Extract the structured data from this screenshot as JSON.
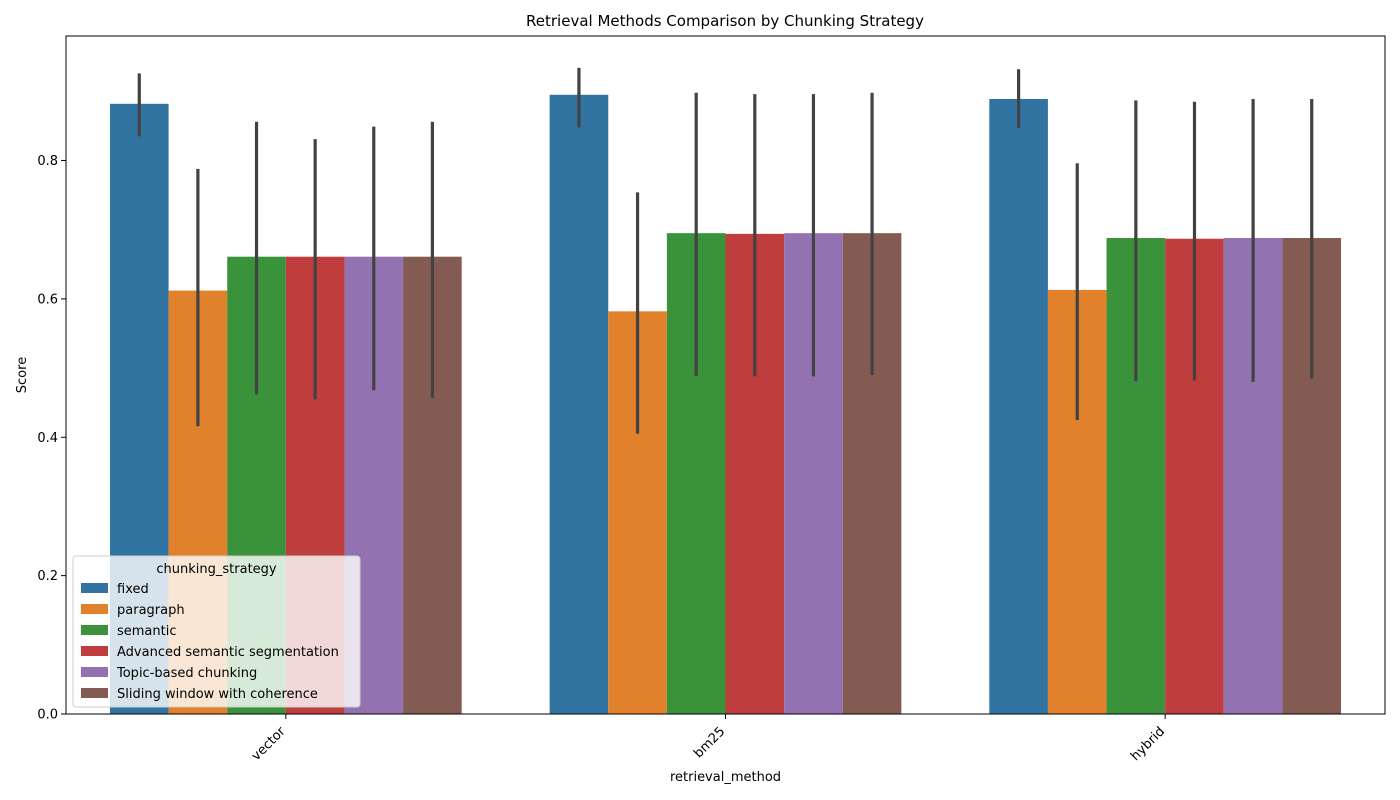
{
  "chart_data": {
    "type": "bar",
    "title": "Retrieval Methods Comparison by Chunking Strategy",
    "xlabel": "retrieval_method",
    "ylabel": "Score",
    "ylim": [
      0,
      0.98
    ],
    "yticks": [
      0.0,
      0.2,
      0.4,
      0.6,
      0.8
    ],
    "ytick_labels": [
      "0.0",
      "0.2",
      "0.4",
      "0.6",
      "0.8"
    ],
    "categories": [
      "vector",
      "bm25",
      "hybrid"
    ],
    "legend": {
      "title": "chunking_strategy",
      "placement": "lower-left"
    },
    "grid": false,
    "series": [
      {
        "name": "fixed",
        "color": "#3274a1",
        "values": [
          0.882,
          0.895,
          0.889
        ],
        "err_low": [
          0.835,
          0.848,
          0.847
        ],
        "err_high": [
          0.926,
          0.934,
          0.932
        ]
      },
      {
        "name": "paragraph",
        "color": "#e1812c",
        "values": [
          0.612,
          0.582,
          0.613
        ],
        "err_low": [
          0.416,
          0.405,
          0.425
        ],
        "err_high": [
          0.788,
          0.754,
          0.796
        ]
      },
      {
        "name": "semantic",
        "color": "#3a923a",
        "values": [
          0.661,
          0.695,
          0.688
        ],
        "err_low": [
          0.462,
          0.489,
          0.481
        ],
        "err_high": [
          0.856,
          0.898,
          0.887
        ]
      },
      {
        "name": "Advanced semantic segmentation",
        "color": "#c03d3e",
        "values": [
          0.661,
          0.694,
          0.687
        ],
        "err_low": [
          0.455,
          0.488,
          0.482
        ],
        "err_high": [
          0.831,
          0.896,
          0.885
        ]
      },
      {
        "name": "Topic-based chunking",
        "color": "#9372b2",
        "values": [
          0.661,
          0.695,
          0.688
        ],
        "err_low": [
          0.468,
          0.488,
          0.48
        ],
        "err_high": [
          0.849,
          0.896,
          0.889
        ]
      },
      {
        "name": "Sliding window with coherence",
        "color": "#845b53",
        "values": [
          0.661,
          0.695,
          0.688
        ],
        "err_low": [
          0.457,
          0.49,
          0.485
        ],
        "err_high": [
          0.856,
          0.898,
          0.889
        ]
      }
    ]
  }
}
